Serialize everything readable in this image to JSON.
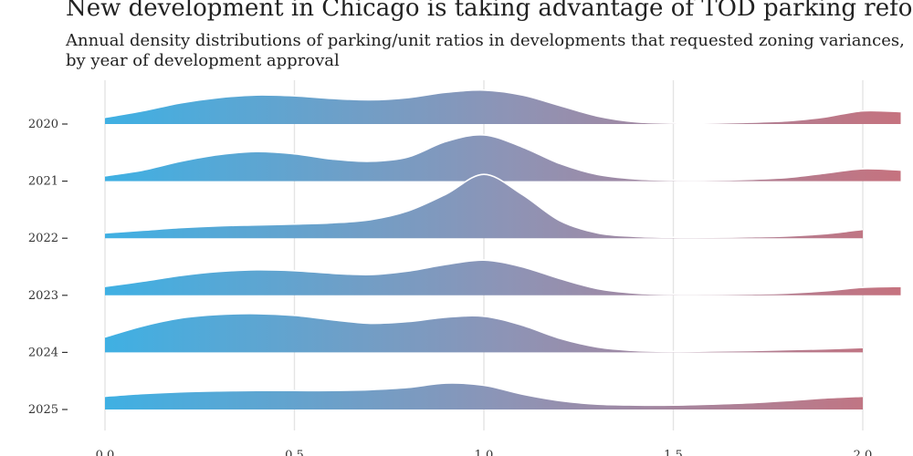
{
  "chart_data": {
    "type": "ridgeline",
    "title": "New development in Chicago is taking advantage of TOD parking reforms",
    "subtitle": "Annual density distributions of parking/unit ratios in developments that requested zoning variances, by year of development approval",
    "xlabel": "",
    "ylabel": "",
    "xlim": [
      0,
      2.1
    ],
    "x_ticks": [
      0.0,
      0.5,
      1.0,
      1.5,
      2.0
    ],
    "x_tick_labels": [
      "0.0",
      "0.5",
      "1.0",
      "1.5",
      "2.0"
    ],
    "grid": "vertical",
    "color_gradient": [
      "#3fb0e3",
      "#8d94b6",
      "#c6727e"
    ],
    "x": [
      0,
      0.1,
      0.2,
      0.3,
      0.4,
      0.5,
      0.6,
      0.7,
      0.8,
      0.9,
      1.0,
      1.1,
      1.2,
      1.3,
      1.4,
      1.5,
      1.6,
      1.7,
      1.8,
      1.9,
      2.0,
      2.1
    ],
    "series": [
      {
        "name": "2020",
        "x_max": 2.1,
        "density": [
          0.15,
          0.3,
          0.48,
          0.6,
          0.66,
          0.64,
          0.58,
          0.55,
          0.6,
          0.72,
          0.77,
          0.66,
          0.42,
          0.18,
          0.05,
          0.02,
          0.02,
          0.04,
          0.07,
          0.16,
          0.3,
          0.28
        ]
      },
      {
        "name": "2021",
        "x_max": 2.1,
        "density": [
          0.12,
          0.25,
          0.45,
          0.6,
          0.67,
          0.62,
          0.5,
          0.45,
          0.55,
          0.9,
          1.05,
          0.78,
          0.4,
          0.15,
          0.05,
          0.02,
          0.02,
          0.04,
          0.08,
          0.18,
          0.28,
          0.25
        ]
      },
      {
        "name": "2022",
        "x_max": 2.0,
        "density": [
          0.12,
          0.18,
          0.24,
          0.28,
          0.3,
          0.32,
          0.35,
          0.42,
          0.62,
          1.0,
          1.45,
          1.0,
          0.4,
          0.12,
          0.04,
          0.02,
          0.02,
          0.03,
          0.05,
          0.1,
          0.2
        ]
      },
      {
        "name": "2023",
        "x_max": 2.1,
        "density": [
          0.2,
          0.32,
          0.45,
          0.54,
          0.58,
          0.56,
          0.5,
          0.47,
          0.55,
          0.7,
          0.8,
          0.65,
          0.38,
          0.15,
          0.05,
          0.02,
          0.02,
          0.03,
          0.05,
          0.1,
          0.18,
          0.2
        ]
      },
      {
        "name": "2024",
        "x_max": 2.0,
        "density": [
          0.35,
          0.6,
          0.78,
          0.86,
          0.88,
          0.84,
          0.74,
          0.66,
          0.7,
          0.8,
          0.82,
          0.62,
          0.32,
          0.12,
          0.04,
          0.02,
          0.03,
          0.04,
          0.06,
          0.08,
          0.11
        ]
      },
      {
        "name": "2025",
        "x_max": 2.0,
        "density": [
          0.3,
          0.36,
          0.4,
          0.42,
          0.43,
          0.43,
          0.43,
          0.45,
          0.5,
          0.6,
          0.55,
          0.35,
          0.2,
          0.12,
          0.1,
          0.1,
          0.12,
          0.15,
          0.2,
          0.26,
          0.3
        ]
      }
    ]
  }
}
